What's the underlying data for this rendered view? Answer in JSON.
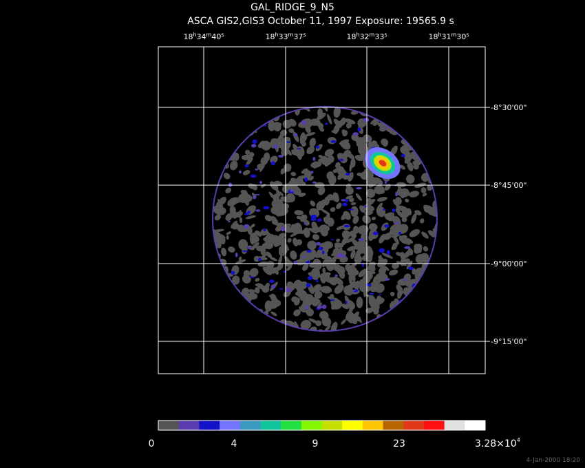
{
  "header": {
    "title": "GAL_RIDGE_9_N5",
    "subtitle": "ASCA GIS2,GIS3 October 11, 1997 Exposure: 19565.9 s"
  },
  "ra_units": [
    "h",
    "m",
    "s"
  ],
  "ra_labels": [
    {
      "hours": "18",
      "minutes": "34",
      "seconds": "40"
    },
    {
      "hours": "18",
      "minutes": "33",
      "seconds": "37"
    },
    {
      "hours": "18",
      "minutes": "32",
      "seconds": "33"
    },
    {
      "hours": "18",
      "minutes": "31",
      "seconds": "30"
    }
  ],
  "dec_labels": [
    "-8°30'00\"",
    "-8°45'00\"",
    "-9°00'00\"",
    "-9°15'00\""
  ],
  "colorbar": {
    "colors": [
      "#555555",
      "#5a3cae",
      "#1212c8",
      "#7474ff",
      "#3a9ac0",
      "#10c49c",
      "#22e040",
      "#84f800",
      "#c4e000",
      "#ffff00",
      "#ffc400",
      "#b86400",
      "#e03818",
      "#ff1010",
      "#e0e0e0",
      "#ffffff"
    ],
    "labels": [
      "0",
      "4",
      "9",
      "23"
    ],
    "max_label": {
      "mantissa": "3.28×10",
      "exponent": "4"
    }
  },
  "timestamp": "4-Jan-2000 18:20"
}
